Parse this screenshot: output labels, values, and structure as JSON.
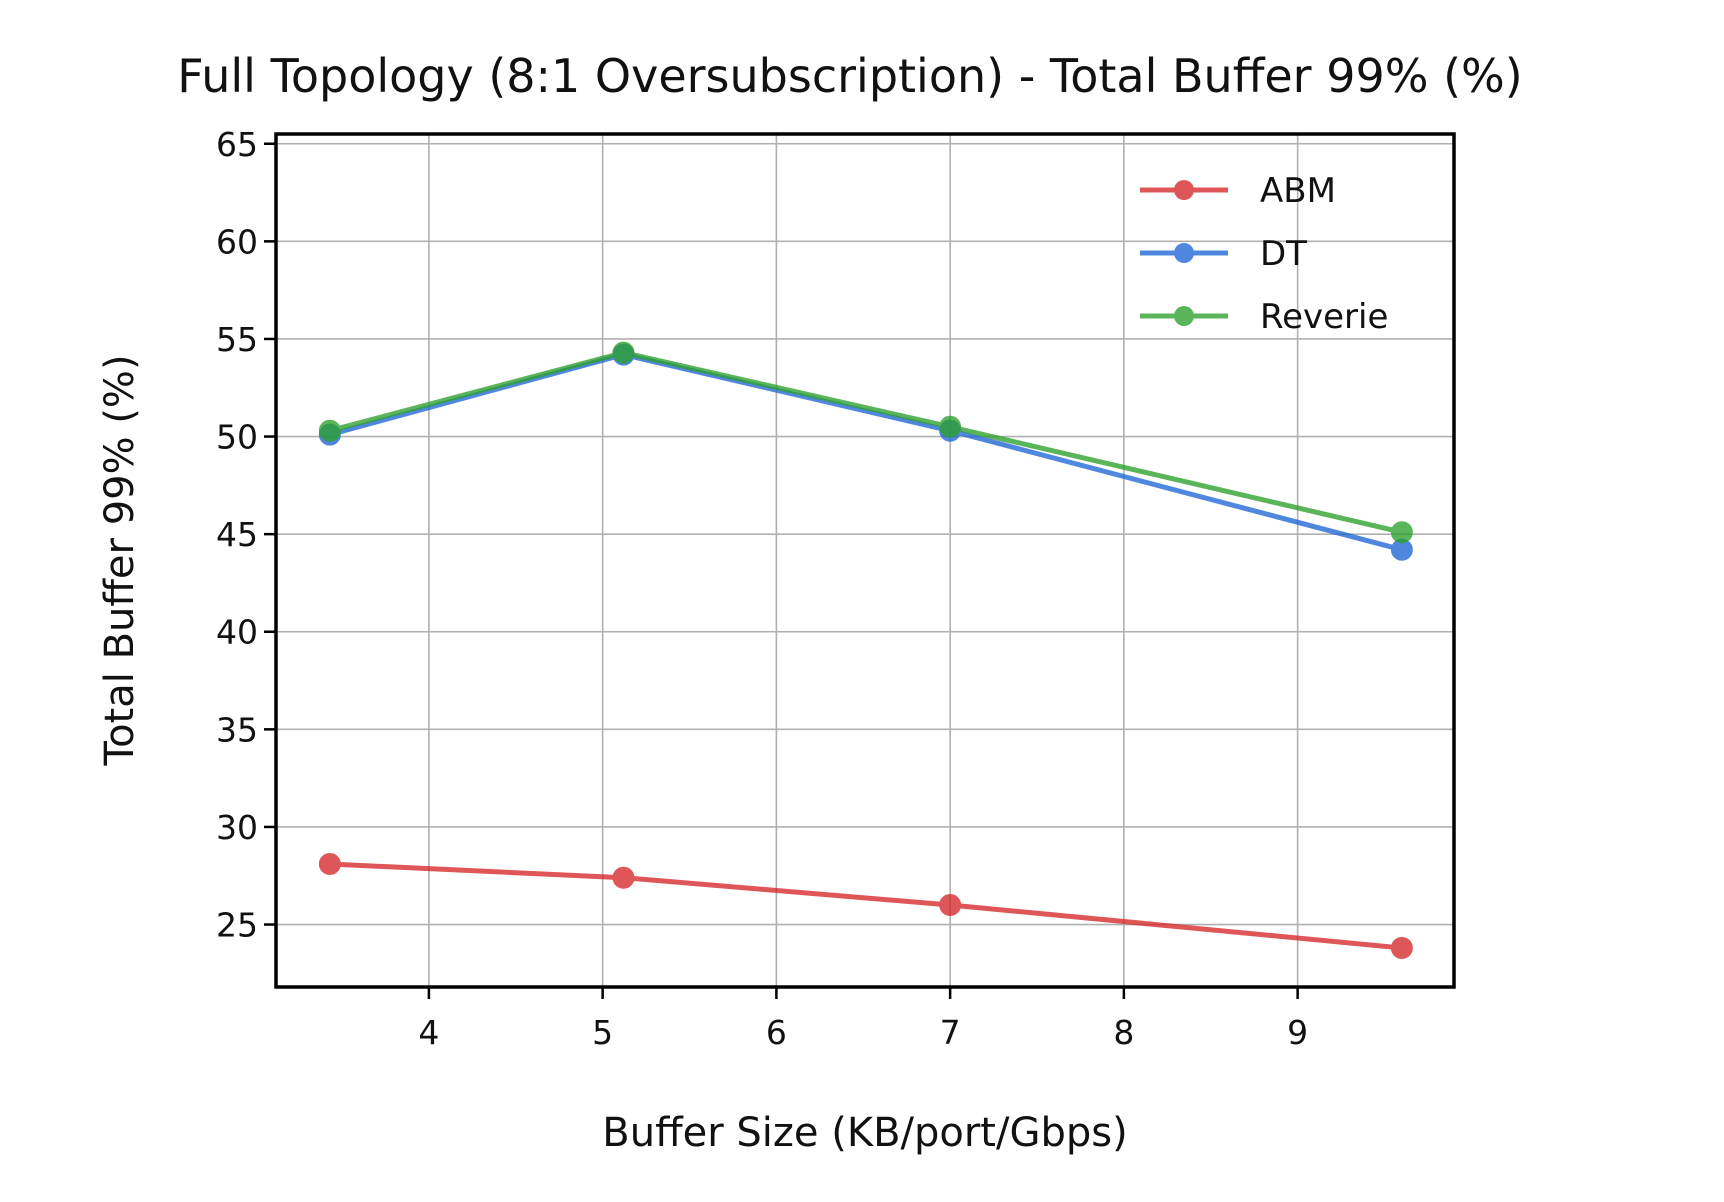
{
  "chart_data": {
    "type": "line",
    "title": "Full Topology (8:1 Oversubscription) - Total Buffer 99% (%)",
    "xlabel": "Buffer Size (KB/port/Gbps)",
    "ylabel": "Total Buffer 99% (%)",
    "xlim": [
      3.12,
      9.9
    ],
    "ylim": [
      21.8,
      65.5
    ],
    "xticks": [
      4,
      5,
      6,
      7,
      8,
      9
    ],
    "yticks": [
      25,
      30,
      35,
      40,
      45,
      50,
      55,
      60,
      65
    ],
    "grid": true,
    "legend_position": "top-right",
    "x": [
      3.43,
      5.12,
      7.0,
      9.6
    ],
    "series": [
      {
        "name": "ABM",
        "color": "#d62728",
        "values": [
          28.1,
          27.4,
          26.0,
          23.8
        ]
      },
      {
        "name": "DT",
        "color": "#1f66d6",
        "values": [
          50.1,
          54.2,
          50.3,
          44.2
        ]
      },
      {
        "name": "Reverie",
        "color": "#2ca02c",
        "values": [
          50.3,
          54.3,
          50.5,
          45.1
        ]
      }
    ]
  }
}
